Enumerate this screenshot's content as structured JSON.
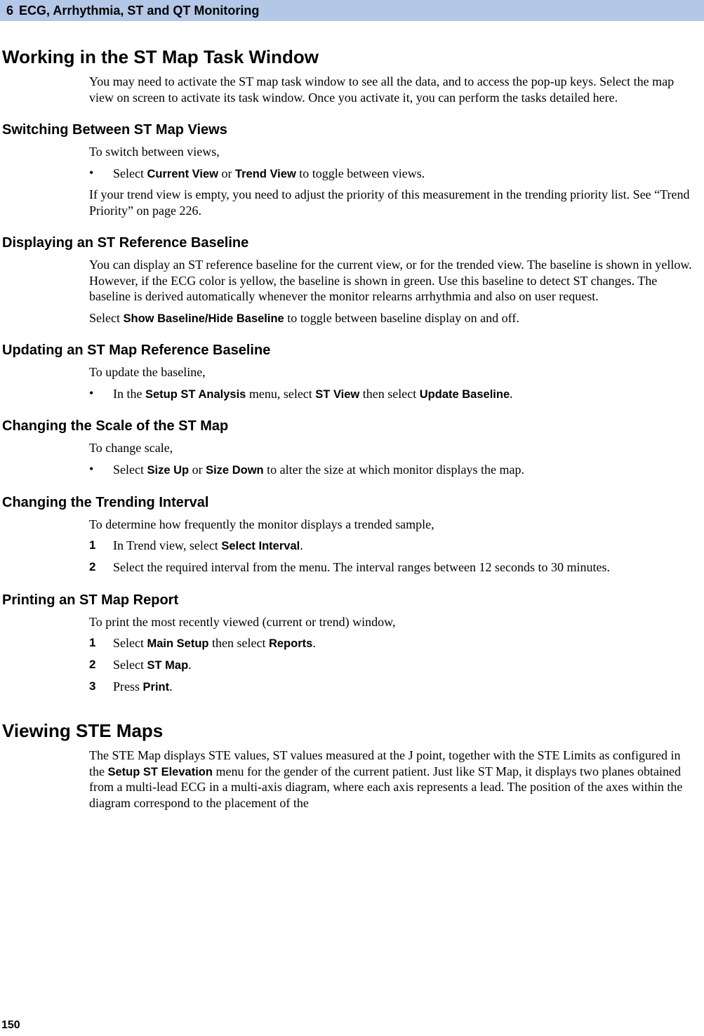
{
  "header": {
    "chapter_number": "6",
    "chapter_title": "ECG, Arrhythmia, ST and QT Monitoring"
  },
  "sections": {
    "working": {
      "title": "Working in the ST Map Task Window",
      "intro": "You may need to activate the ST map task window to see all the data, and to access the pop-up keys. Select the map view on screen to activate its task window. Once you activate it, you can perform the tasks detailed here."
    },
    "switching": {
      "title": "Switching Between ST Map Views",
      "p1": "To switch between views,",
      "bullet_pre": "Select ",
      "ui1": "Current View",
      "mid1": " or ",
      "ui2": "Trend View",
      "post1": " to toggle between views.",
      "p2": "If your trend view is empty, you need to adjust the priority of this measurement in the trending priority list. See “Trend Priority” on page 226."
    },
    "displaying": {
      "title": "Displaying an ST Reference Baseline",
      "p1": "You can display an ST reference baseline for the current view, or for the trended view. The baseline is shown in yellow. However, if the ECG color is yellow, the baseline is shown in green. Use this baseline to detect ST changes. The baseline is derived automatically whenever the monitor relearns arrhythmia and also on user request.",
      "p2_pre": "Select ",
      "p2_ui": "Show Baseline/Hide Baseline",
      "p2_post": " to toggle between baseline display on and off."
    },
    "updating": {
      "title": "Updating an ST Map Reference Baseline",
      "p1": "To update the baseline,",
      "bullet_pre": "In the ",
      "ui1": "Setup ST Analysis",
      "mid1": " menu, select ",
      "ui2": "ST View",
      "mid2": " then select ",
      "ui3": "Update Baseline",
      "post": "."
    },
    "scale": {
      "title": "Changing the Scale of the ST Map",
      "p1": "To change scale,",
      "bullet_pre": "Select ",
      "ui1": "Size Up",
      "mid1": " or ",
      "ui2": "Size Down",
      "post": " to alter the size at which monitor displays the map."
    },
    "interval": {
      "title": "Changing the Trending Interval",
      "p1": "To determine how frequently the monitor displays a trended sample,",
      "step1_pre": "In Trend view, select ",
      "step1_ui": "Select Interval",
      "step1_post": ".",
      "step2": "Select the required interval from the menu. The interval ranges between 12 seconds to 30 minutes."
    },
    "printing": {
      "title": "Printing an ST Map Report",
      "p1": "To print the most recently viewed (current or trend) window,",
      "step1_pre": "Select ",
      "step1_ui1": "Main Setup",
      "step1_mid": " then select ",
      "step1_ui2": "Reports",
      "step1_post": ".",
      "step2_pre": "Select ",
      "step2_ui": "ST Map",
      "step2_post": ".",
      "step3_pre": "Press ",
      "step3_ui": "Print",
      "step3_post": "."
    },
    "viewing_ste": {
      "title": "Viewing STE Maps",
      "p1_pre": "The STE Map displays STE values, ST values measured at the J point, together with the STE Limits as configured in the ",
      "p1_ui": "Setup ST Elevation",
      "p1_post": " menu for the gender of the current patient. Just like ST Map, it displays two planes obtained from a multi-lead ECG in a multi-axis diagram, where each axis represents a lead. The position of the axes within the diagram correspond to the placement of the"
    }
  },
  "labels": {
    "bullet": "•",
    "n1": "1",
    "n2": "2",
    "n3": "3"
  },
  "page_number": "150"
}
